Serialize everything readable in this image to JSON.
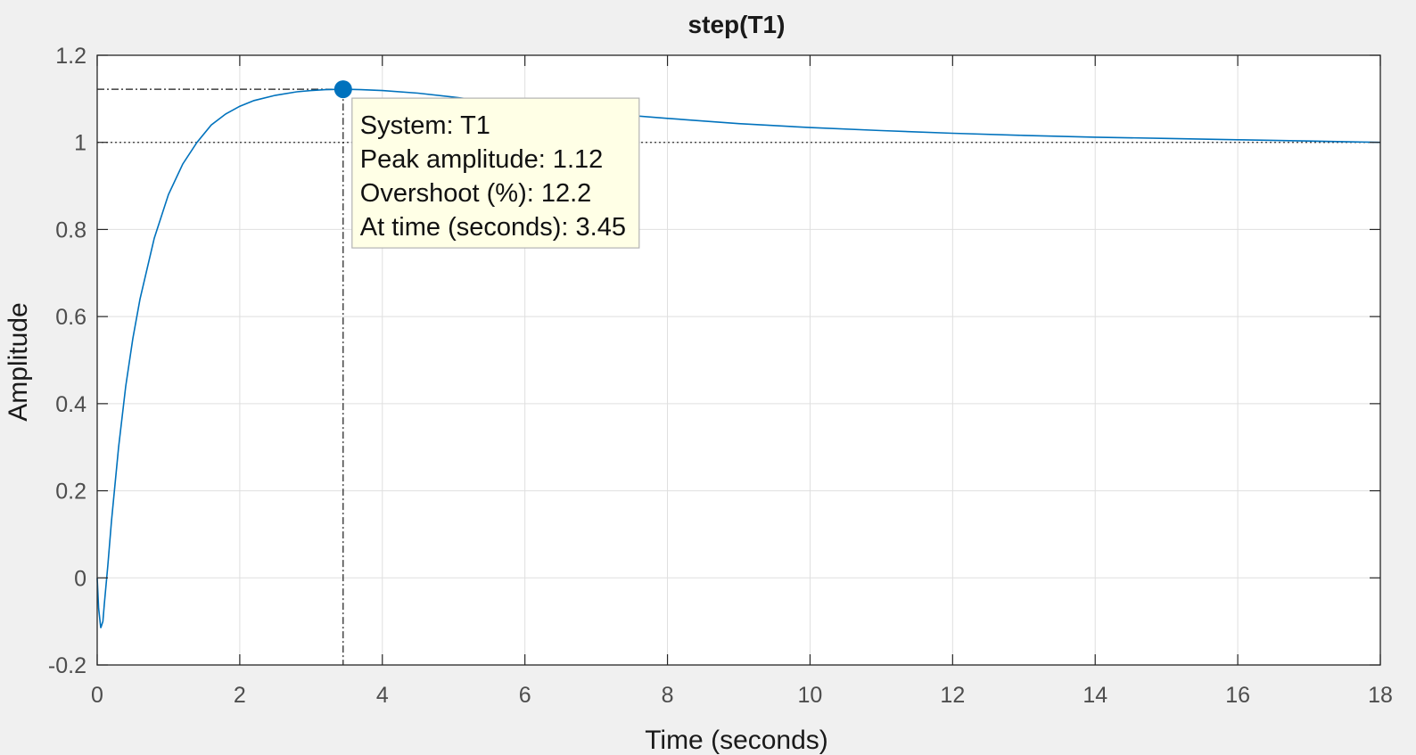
{
  "chart_data": {
    "type": "line",
    "title": "step(T1)",
    "xlabel": "Time (seconds)",
    "ylabel": "Amplitude",
    "xlim": [
      0,
      18
    ],
    "ylim": [
      -0.2,
      1.2
    ],
    "xticks": [
      0,
      2,
      4,
      6,
      8,
      10,
      12,
      14,
      16,
      18
    ],
    "yticks": [
      -0.2,
      0,
      0.2,
      0.4,
      0.6,
      0.8,
      1,
      1.2
    ],
    "xtick_labels": [
      "0",
      "2",
      "4",
      "6",
      "8",
      "10",
      "12",
      "14",
      "16",
      "18"
    ],
    "ytick_labels": [
      "-0.2",
      "0",
      "0.2",
      "0.4",
      "0.6",
      "0.8",
      "1",
      "1.2"
    ],
    "grid": true,
    "reference_line": 1,
    "series": [
      {
        "color": "#0072bd",
        "x": [
          0,
          0.02,
          0.05,
          0.08,
          0.1,
          0.15,
          0.2,
          0.3,
          0.4,
          0.5,
          0.6,
          0.8,
          1.0,
          1.2,
          1.4,
          1.6,
          1.8,
          2.0,
          2.2,
          2.5,
          2.8,
          3.0,
          3.2,
          3.45,
          3.7,
          4.0,
          4.5,
          5.0,
          5.5,
          6.0,
          7.0,
          8.0,
          9.0,
          10.0,
          11.0,
          12.0,
          13.0,
          14.0,
          15.0,
          16.0,
          17.0,
          18.0
        ],
        "y": [
          0,
          -0.07,
          -0.115,
          -0.1,
          -0.06,
          0.03,
          0.13,
          0.3,
          0.44,
          0.55,
          0.64,
          0.78,
          0.88,
          0.95,
          1.0,
          1.04,
          1.065,
          1.083,
          1.096,
          1.108,
          1.116,
          1.119,
          1.121,
          1.122,
          1.121,
          1.119,
          1.113,
          1.104,
          1.094,
          1.085,
          1.068,
          1.055,
          1.043,
          1.034,
          1.027,
          1.021,
          1.016,
          1.012,
          1.009,
          1.006,
          1.003,
          1.0
        ]
      }
    ],
    "marker": {
      "x": 3.45,
      "y": 1.122,
      "color": "#0072bd"
    },
    "datatip": {
      "lines": [
        "System: T1",
        "Peak amplitude: 1.12",
        "Overshoot (%): 12.2",
        "At time (seconds): 3.45"
      ]
    }
  }
}
